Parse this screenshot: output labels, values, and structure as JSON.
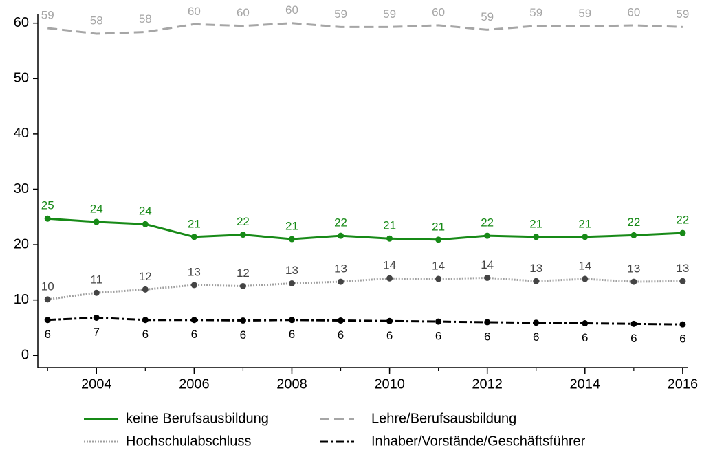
{
  "chart_data": {
    "type": "line",
    "x": [
      2003,
      2004,
      2005,
      2006,
      2007,
      2008,
      2009,
      2010,
      2011,
      2012,
      2013,
      2014,
      2015,
      2016
    ],
    "xlim": [
      2002.8,
      2016.1
    ],
    "xticks": [
      2004,
      2006,
      2008,
      2010,
      2012,
      2014,
      2016
    ],
    "ylim": [
      -2.2,
      61.7
    ],
    "yticks": [
      0,
      10,
      20,
      30,
      40,
      50,
      60
    ],
    "legend": "bottom",
    "series": [
      {
        "name": "keine Berufsausbildung",
        "color": "#178a17",
        "dash": "solid",
        "markers": true,
        "label_position": "above",
        "values": [
          24.7,
          24.1,
          23.7,
          21.4,
          21.8,
          21.0,
          21.6,
          21.1,
          20.9,
          21.6,
          21.4,
          21.4,
          21.7,
          22.1
        ],
        "value_labels": [
          "25",
          "24",
          "24",
          "21",
          "22",
          "21",
          "22",
          "21",
          "21",
          "22",
          "21",
          "21",
          "22",
          "22"
        ]
      },
      {
        "name": "Lehre/Berufsausbildung",
        "color": "#a6a6a6",
        "dash": "dashed",
        "markers": false,
        "label_position": "above",
        "values": [
          59.1,
          58.1,
          58.4,
          59.8,
          59.5,
          60.0,
          59.3,
          59.3,
          59.6,
          58.8,
          59.5,
          59.4,
          59.6,
          59.3
        ],
        "value_labels": [
          "59",
          "58",
          "58",
          "60",
          "60",
          "60",
          "59",
          "59",
          "60",
          "59",
          "59",
          "59",
          "60",
          "59"
        ]
      },
      {
        "name": "Hochschulabschluss",
        "color": "#a0a0a0",
        "marker_color": "#444444",
        "dash": "dotted",
        "markers": true,
        "label_position": "above",
        "values": [
          10.1,
          11.3,
          11.9,
          12.7,
          12.5,
          13.0,
          13.3,
          13.9,
          13.8,
          14.0,
          13.4,
          13.8,
          13.3,
          13.4
        ],
        "value_labels": [
          "10",
          "11",
          "12",
          "13",
          "12",
          "13",
          "13",
          "14",
          "14",
          "14",
          "13",
          "14",
          "13",
          "13"
        ]
      },
      {
        "name": "Inhaber/Vorstände/Geschäftsführer",
        "color": "#000000",
        "dash": "dashdot",
        "markers": true,
        "label_position": "below",
        "values": [
          6.4,
          6.8,
          6.4,
          6.4,
          6.3,
          6.4,
          6.3,
          6.2,
          6.1,
          6.0,
          5.9,
          5.8,
          5.7,
          5.6
        ],
        "value_labels": [
          "6",
          "7",
          "6",
          "6",
          "6",
          "6",
          "6",
          "6",
          "6",
          "6",
          "6",
          "6",
          "6",
          "6"
        ]
      }
    ]
  }
}
